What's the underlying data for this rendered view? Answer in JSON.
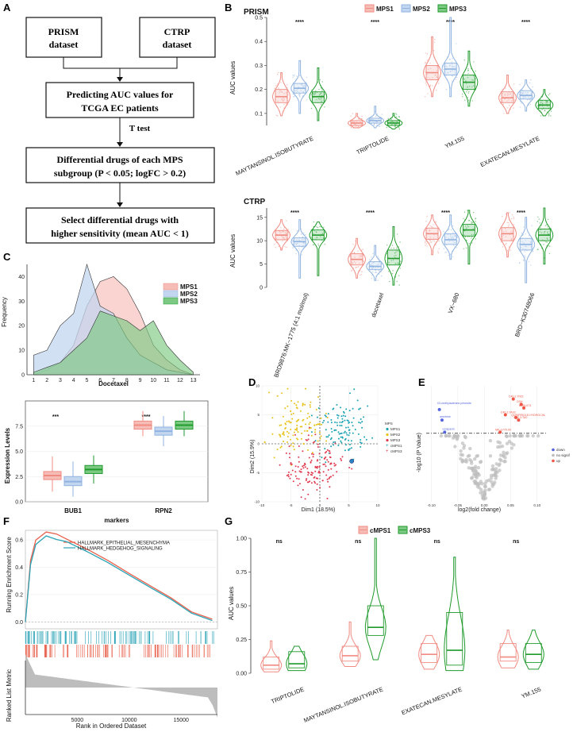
{
  "panel_labels": {
    "a": "A",
    "b": "B",
    "c": "C",
    "d": "D",
    "e": "E",
    "f": "F",
    "g": "G"
  },
  "flowchart": {
    "prism": [
      "PRISM",
      "dataset"
    ],
    "ctrp": [
      "CTRP",
      "dataset"
    ],
    "predict": [
      "Predicting AUC values for",
      "TCGA EC patients"
    ],
    "ttest": "T test",
    "diff": [
      "Differential drugs of each MPS",
      "subgroup (P < 0.05; logFC > 0.2)"
    ],
    "select": [
      "Select differential drugs with",
      "higher sensitivity (mean AUC < 1)"
    ]
  },
  "colors": {
    "mps1": "#f08b82",
    "mps2": "#8fb3e0",
    "mps3": "#1f9a2b",
    "mps1_fill": "#f6bdb7",
    "mps2_fill": "#c3d6ef",
    "mps3_fill": "#7cc983"
  },
  "chart_data": [
    {
      "id": "B-prism",
      "type": "violin",
      "title": "PRISM",
      "ylabel": "AUC values",
      "ylim": [
        0.05,
        0.5
      ],
      "yticks": [
        0.1,
        0.2,
        0.3,
        0.4,
        0.5
      ],
      "legend": [
        "MPS1",
        "MPS2",
        "MPS3"
      ],
      "categories": [
        "MAYTANSINOL.ISOBUTYRATE",
        "TRIPTOLIDE",
        "YM.155",
        "EXATECAN.MESYLATE"
      ],
      "significance": [
        "****",
        "****",
        "****",
        "****"
      ],
      "series": [
        {
          "name": "MPS1",
          "median": [
            0.17,
            0.06,
            0.27,
            0.165
          ],
          "q1": [
            0.145,
            0.05,
            0.24,
            0.145
          ],
          "q3": [
            0.2,
            0.07,
            0.3,
            0.19
          ],
          "min": [
            0.09,
            0.04,
            0.17,
            0.1
          ],
          "max": [
            0.27,
            0.1,
            0.42,
            0.26
          ]
        },
        {
          "name": "MPS2",
          "median": [
            0.205,
            0.07,
            0.285,
            0.175
          ],
          "q1": [
            0.185,
            0.06,
            0.26,
            0.16
          ],
          "q3": [
            0.225,
            0.08,
            0.31,
            0.195
          ],
          "min": [
            0.1,
            0.04,
            0.17,
            0.11
          ],
          "max": [
            0.32,
            0.13,
            0.5,
            0.24
          ]
        },
        {
          "name": "MPS3",
          "median": [
            0.17,
            0.06,
            0.23,
            0.135
          ],
          "q1": [
            0.145,
            0.05,
            0.2,
            0.12
          ],
          "q3": [
            0.19,
            0.07,
            0.26,
            0.155
          ],
          "min": [
            0.07,
            0.035,
            0.13,
            0.09
          ],
          "max": [
            0.29,
            0.1,
            0.36,
            0.2
          ]
        }
      ]
    },
    {
      "id": "B-ctrp",
      "type": "violin",
      "title": "CTRP",
      "ylabel": "AUC values",
      "ylim": [
        0,
        17
      ],
      "yticks": [
        0,
        5,
        10,
        15
      ],
      "categories": [
        "BRD9876:MK−1775 (4:1 mol/mol)",
        "docetaxel",
        "VX−680",
        "BRD−K30748066"
      ],
      "significance": [
        "****",
        "****",
        "****",
        "****"
      ],
      "series": [
        {
          "name": "MPS1",
          "median": [
            11.2,
            6.0,
            11.5,
            11.5
          ],
          "q1": [
            10.2,
            4.8,
            10.3,
            10.0
          ],
          "q3": [
            12.2,
            7.2,
            12.7,
            12.8
          ],
          "min": [
            8.0,
            2.0,
            7.0,
            6.5
          ],
          "max": [
            14.5,
            10.5,
            15.5,
            16.0
          ]
        },
        {
          "name": "MPS2",
          "median": [
            9.8,
            4.5,
            10.2,
            9.2
          ],
          "q1": [
            8.8,
            3.8,
            9.2,
            8.0
          ],
          "q3": [
            10.6,
            5.5,
            11.5,
            10.5
          ],
          "min": [
            2.0,
            1.5,
            6.0,
            1.0
          ],
          "max": [
            14.5,
            9.0,
            15.5,
            15.0
          ]
        },
        {
          "name": "MPS3",
          "median": [
            11.2,
            6.2,
            12.3,
            11.2
          ],
          "q1": [
            10.2,
            4.8,
            11.0,
            10.0
          ],
          "q3": [
            12.3,
            8.0,
            13.5,
            12.5
          ],
          "min": [
            2.5,
            0.5,
            5.0,
            5.0
          ],
          "max": [
            14.0,
            13.0,
            16.5,
            17.0
          ]
        }
      ]
    },
    {
      "id": "C-density",
      "type": "area",
      "xlabel": "Docetaxel",
      "ylabel": "Frequency",
      "ylim": [
        0,
        45
      ],
      "yticks": [
        0,
        10,
        20,
        30,
        40
      ],
      "x": [
        1,
        2,
        3,
        4,
        5,
        6,
        7,
        8,
        9,
        10,
        11,
        12,
        13
      ],
      "series": [
        {
          "name": "MPS1",
          "values": [
            0,
            2,
            5,
            12,
            28,
            38,
            40,
            35,
            25,
            12,
            6,
            2,
            0
          ]
        },
        {
          "name": "MPS2",
          "values": [
            8,
            10,
            20,
            25,
            45,
            28,
            25,
            15,
            8,
            5,
            2,
            1,
            0
          ]
        },
        {
          "name": "MPS3",
          "values": [
            1,
            3,
            5,
            10,
            15,
            26,
            24,
            22,
            18,
            22,
            12,
            6,
            1
          ]
        }
      ]
    },
    {
      "id": "C-box",
      "type": "box",
      "xlabel": "markers",
      "ylabel": "Expression Levels",
      "ylim": [
        0,
        10
      ],
      "yticks": [
        0.0,
        2.5,
        5.0,
        7.5
      ],
      "categories": [
        "BUB1",
        "RPN2"
      ],
      "significance": [
        "***",
        "****"
      ],
      "series": [
        {
          "name": "MPS1",
          "median": [
            2.6,
            7.6
          ],
          "q1": [
            2.2,
            7.2
          ],
          "q3": [
            3.0,
            8.0
          ],
          "min": [
            1.0,
            6.5
          ],
          "max": [
            4.5,
            9.0
          ]
        },
        {
          "name": "MPS2",
          "median": [
            2.0,
            7.0
          ],
          "q1": [
            1.6,
            6.6
          ],
          "q3": [
            2.5,
            7.4
          ],
          "min": [
            0.5,
            5.5
          ],
          "max": [
            4.0,
            8.5
          ]
        },
        {
          "name": "MPS3",
          "median": [
            3.2,
            7.6
          ],
          "q1": [
            2.8,
            7.2
          ],
          "q3": [
            3.6,
            8.0
          ],
          "min": [
            1.8,
            6.5
          ],
          "max": [
            4.6,
            9.0
          ]
        }
      ]
    },
    {
      "id": "D-scatter",
      "type": "scatter",
      "xlabel": "Dim1 (18.5%)",
      "ylabel": "Dim2 (15.9%)",
      "xlim": [
        -10,
        10
      ],
      "ylim": [
        -10,
        10
      ],
      "xticks": [
        -10,
        -5,
        0,
        5,
        10
      ],
      "yticks": [
        -10,
        -5,
        0,
        5,
        10
      ],
      "legend_title": "MPS",
      "legend": [
        "MPS1",
        "MPS2",
        "MPS3",
        "cMPS1",
        "cMPS3"
      ],
      "legend_colors": [
        "#1aa3b3",
        "#e8c21b",
        "#e03a4f",
        "#1aa3b3",
        "#e03a4f"
      ]
    },
    {
      "id": "E-volcano",
      "type": "scatter",
      "xlabel": "log2(fold change)",
      "ylabel": "-log10 (P Value)",
      "xticks": [
        -0.1,
        -0.05,
        0.0,
        0.05,
        0.1
      ],
      "legend": [
        "down",
        "no signif",
        "up"
      ],
      "legend_colors": [
        "#5566dd",
        "#bbbbbb",
        "#ee5544"
      ],
      "labels_down": [
        "X3.methyladenine.prinesite",
        "ametrine",
        "vorapaxin"
      ],
      "labels_up": [
        "C40.3.Th02",
        "OSH",
        "BMN-673",
        "C40.3.TA02",
        "QUINPIROLE.HYDROCHL",
        "C40.3.TA0",
        "MK-1775.00"
      ],
      "down_points": [
        [
          -0.085,
          1.75
        ],
        [
          -0.08,
          1.55
        ],
        [
          -0.075,
          1.32
        ]
      ],
      "up_points": [
        [
          0.055,
          1.95
        ],
        [
          0.07,
          1.85
        ],
        [
          0.075,
          1.78
        ],
        [
          0.04,
          1.65
        ],
        [
          0.06,
          1.6
        ],
        [
          0.065,
          1.55
        ],
        [
          0.03,
          1.32
        ]
      ]
    },
    {
      "id": "F-gsea",
      "type": "line",
      "xlabel": "Rank in Ordered Dataset",
      "ylabel": "Running Enrichment Score",
      "ylabel2": "Ranked List Metric",
      "xlim": [
        0,
        18500
      ],
      "xticks": [
        5000,
        10000,
        15000
      ],
      "ylim": [
        0,
        0.6
      ],
      "yticks": [
        0.0,
        0.2,
        0.4,
        0.6
      ],
      "series": [
        {
          "name": "HALLMARK_EPITHELIAL_MESENCHYMA",
          "color": "#e8604c",
          "x": [
            0,
            500,
            1000,
            2000,
            3000,
            4000,
            6000,
            8000,
            10000,
            12000,
            14000,
            16000,
            18000
          ],
          "values": [
            0,
            0.45,
            0.6,
            0.66,
            0.64,
            0.6,
            0.53,
            0.45,
            0.36,
            0.27,
            0.17,
            0.08,
            0.02
          ]
        },
        {
          "name": "HALLMARK_HEDGEHOG_SIGNALING",
          "color": "#2aa3b6",
          "x": [
            0,
            500,
            1000,
            2000,
            3000,
            4000,
            6000,
            8000,
            10000,
            12000,
            14000,
            16000,
            18000
          ],
          "values": [
            0,
            0.42,
            0.56,
            0.63,
            0.61,
            0.58,
            0.51,
            0.43,
            0.34,
            0.25,
            0.16,
            0.07,
            0.01
          ]
        }
      ]
    },
    {
      "id": "G-violin",
      "type": "violin",
      "ylabel": "AUC values",
      "ylim": [
        0,
        1
      ],
      "yticks": [
        0.0,
        0.25,
        0.5,
        0.75,
        1.0
      ],
      "legend": [
        "cMPS1",
        "cMPS3"
      ],
      "categories": [
        "TRIPTOLIDE",
        "MAYTANSINOL.ISOBUTYRATE",
        "EXATECAN.MESYLATE",
        "YM.155"
      ],
      "significance": [
        "ns",
        "ns",
        "ns",
        "ns"
      ],
      "series": [
        {
          "name": "cMPS1",
          "median": [
            0.06,
            0.13,
            0.14,
            0.12
          ],
          "q1": [
            0.03,
            0.09,
            0.08,
            0.09
          ],
          "q3": [
            0.12,
            0.2,
            0.22,
            0.22
          ],
          "min": [
            0.01,
            0.05,
            0.03,
            0.04
          ],
          "max": [
            0.24,
            0.38,
            0.28,
            0.32
          ]
        },
        {
          "name": "cMPS3",
          "median": [
            0.07,
            0.34,
            0.17,
            0.14
          ],
          "q1": [
            0.04,
            0.28,
            0.06,
            0.08
          ],
          "q3": [
            0.16,
            0.5,
            0.45,
            0.22
          ],
          "min": [
            0.02,
            0.1,
            0.02,
            0.03
          ],
          "max": [
            0.2,
            1.0,
            0.86,
            0.32
          ]
        }
      ]
    }
  ]
}
